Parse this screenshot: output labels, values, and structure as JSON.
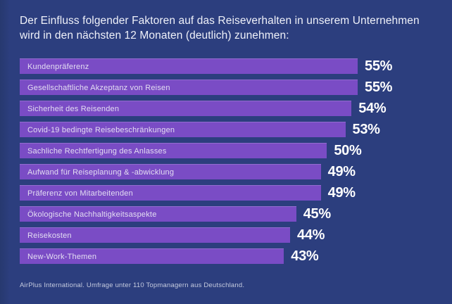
{
  "header": {
    "title": "Der Einfluss folgender Faktoren auf das Reiseverhalten in unserem Unternehmen wird in den nächsten 12 Monaten (deutlich) zunehmen:"
  },
  "footer": {
    "source": "AirPlus International. Umfrage unter 110 Topmanagern aus Deutschland."
  },
  "colors": {
    "background": "#2c3e7e",
    "bar": "#7a4cc5",
    "bar_label_text": "#e3ddf2",
    "value_text": "#ffffff",
    "title_text": "#eff1f9",
    "source_text": "#c4cade"
  },
  "chart_data": {
    "type": "bar",
    "orientation": "horizontal",
    "title": "Der Einfluss folgender Faktoren auf das Reiseverhalten in unserem Unternehmen wird in den nächsten 12 Monaten (deutlich) zunehmen:",
    "categories": [
      "Kundenpräferenz",
      "Gesellschaftliche Akzeptanz von Reisen",
      "Sicherheit des Reisenden",
      "Covid-19 bedingte Reisebeschränkungen",
      "Sachliche Rechtfertigung des Anlasses",
      "Aufwand für Reiseplanung & -abwicklung",
      "Präferenz von Mitarbeitenden",
      "Ökologische Nachhaltigkeitsaspekte",
      "Reisekosten",
      "New-Work-Themen"
    ],
    "values": [
      55,
      55,
      54,
      53,
      50,
      49,
      49,
      45,
      44,
      43
    ],
    "value_suffix": "%",
    "xlim": [
      0,
      55
    ],
    "grid": false,
    "legend": false,
    "value_labels_position": "right-of-bar",
    "source": "AirPlus International. Umfrage unter 110 Topmanagern aus Deutschland."
  }
}
